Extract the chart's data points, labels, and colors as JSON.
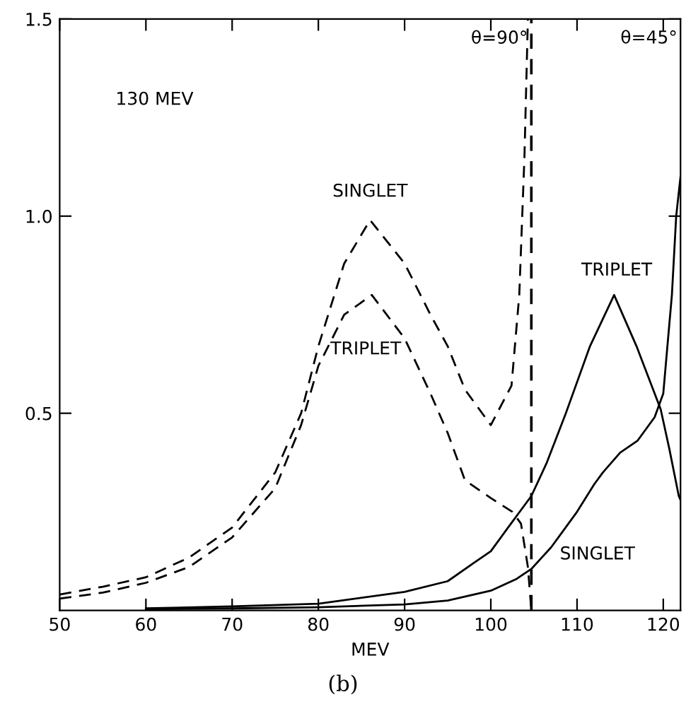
{
  "chart_data": {
    "type": "line",
    "xlabel": "MEV",
    "xlim": [
      50,
      122
    ],
    "ylim": [
      0,
      1.5
    ],
    "xticks": [
      50,
      60,
      70,
      80,
      90,
      100,
      110,
      120
    ],
    "yticks": [
      0.5,
      {
        "value": 1.0,
        "label": "1.0"
      },
      1.5
    ],
    "grid": false,
    "legend": false,
    "marker": "none",
    "series": [
      {
        "name": "SINGLET",
        "color": "#000000",
        "line_style": "dashed",
        "x": [
          50,
          55,
          60,
          65,
          70,
          75,
          78,
          80,
          83,
          86,
          90,
          93,
          95,
          97,
          100,
          102.4,
          103.3,
          103.9,
          104.3
        ],
        "values": [
          0.04,
          0.06,
          0.084,
          0.134,
          0.21,
          0.35,
          0.5,
          0.67,
          0.88,
          0.99,
          0.88,
          0.75,
          0.67,
          0.56,
          0.47,
          0.57,
          0.8,
          1.15,
          1.5
        ]
      },
      {
        "name": "TRIPLET",
        "color": "#000000",
        "line_style": "dashed",
        "x": [
          50,
          55,
          60,
          65,
          70,
          75,
          78,
          80,
          83,
          86.2,
          90,
          93,
          95,
          97,
          100,
          102.5,
          103.5,
          104.3,
          104.7
        ],
        "values": [
          0.03,
          0.045,
          0.07,
          0.11,
          0.185,
          0.31,
          0.47,
          0.62,
          0.75,
          0.8,
          0.69,
          0.55,
          0.45,
          0.33,
          0.285,
          0.25,
          0.22,
          0.11,
          0.0
        ]
      },
      {
        "name": "TRIPLET",
        "color": "#000000",
        "line_style": "solid",
        "x": [
          60,
          70,
          80,
          90,
          95,
          98,
          100,
          102,
          104.7,
          106.5,
          108.7,
          111.5,
          114.3,
          116.9,
          119.7,
          120.7,
          121.8,
          122
        ],
        "values": [
          0.005,
          0.01,
          0.017,
          0.047,
          0.074,
          0.12,
          0.15,
          0.21,
          0.29,
          0.375,
          0.5,
          0.67,
          0.8,
          0.67,
          0.51,
          0.41,
          0.29,
          0.28
        ]
      },
      {
        "name": "SINGLET",
        "color": "#000000",
        "line_style": "solid",
        "x": [
          60,
          70,
          80,
          90,
          95,
          100,
          103,
          104.7,
          107,
          110,
          112,
          113,
          115,
          117,
          119,
          120,
          121,
          121.5,
          122
        ],
        "values": [
          0.003,
          0.005,
          0.008,
          0.015,
          0.025,
          0.05,
          0.08,
          0.105,
          0.16,
          0.25,
          0.32,
          0.35,
          0.4,
          0.43,
          0.49,
          0.55,
          0.8,
          1.0,
          1.1
        ]
      }
    ],
    "ref_lines": [
      {
        "axis": "x",
        "value": 104.7,
        "color": "#000000",
        "line_style": "dashed"
      }
    ],
    "annotations": [
      "130 MEV",
      {
        "text": "θ=90°",
        "x": 104.3,
        "y": 1.45
      },
      "θ=45°",
      "(b)"
    ]
  }
}
